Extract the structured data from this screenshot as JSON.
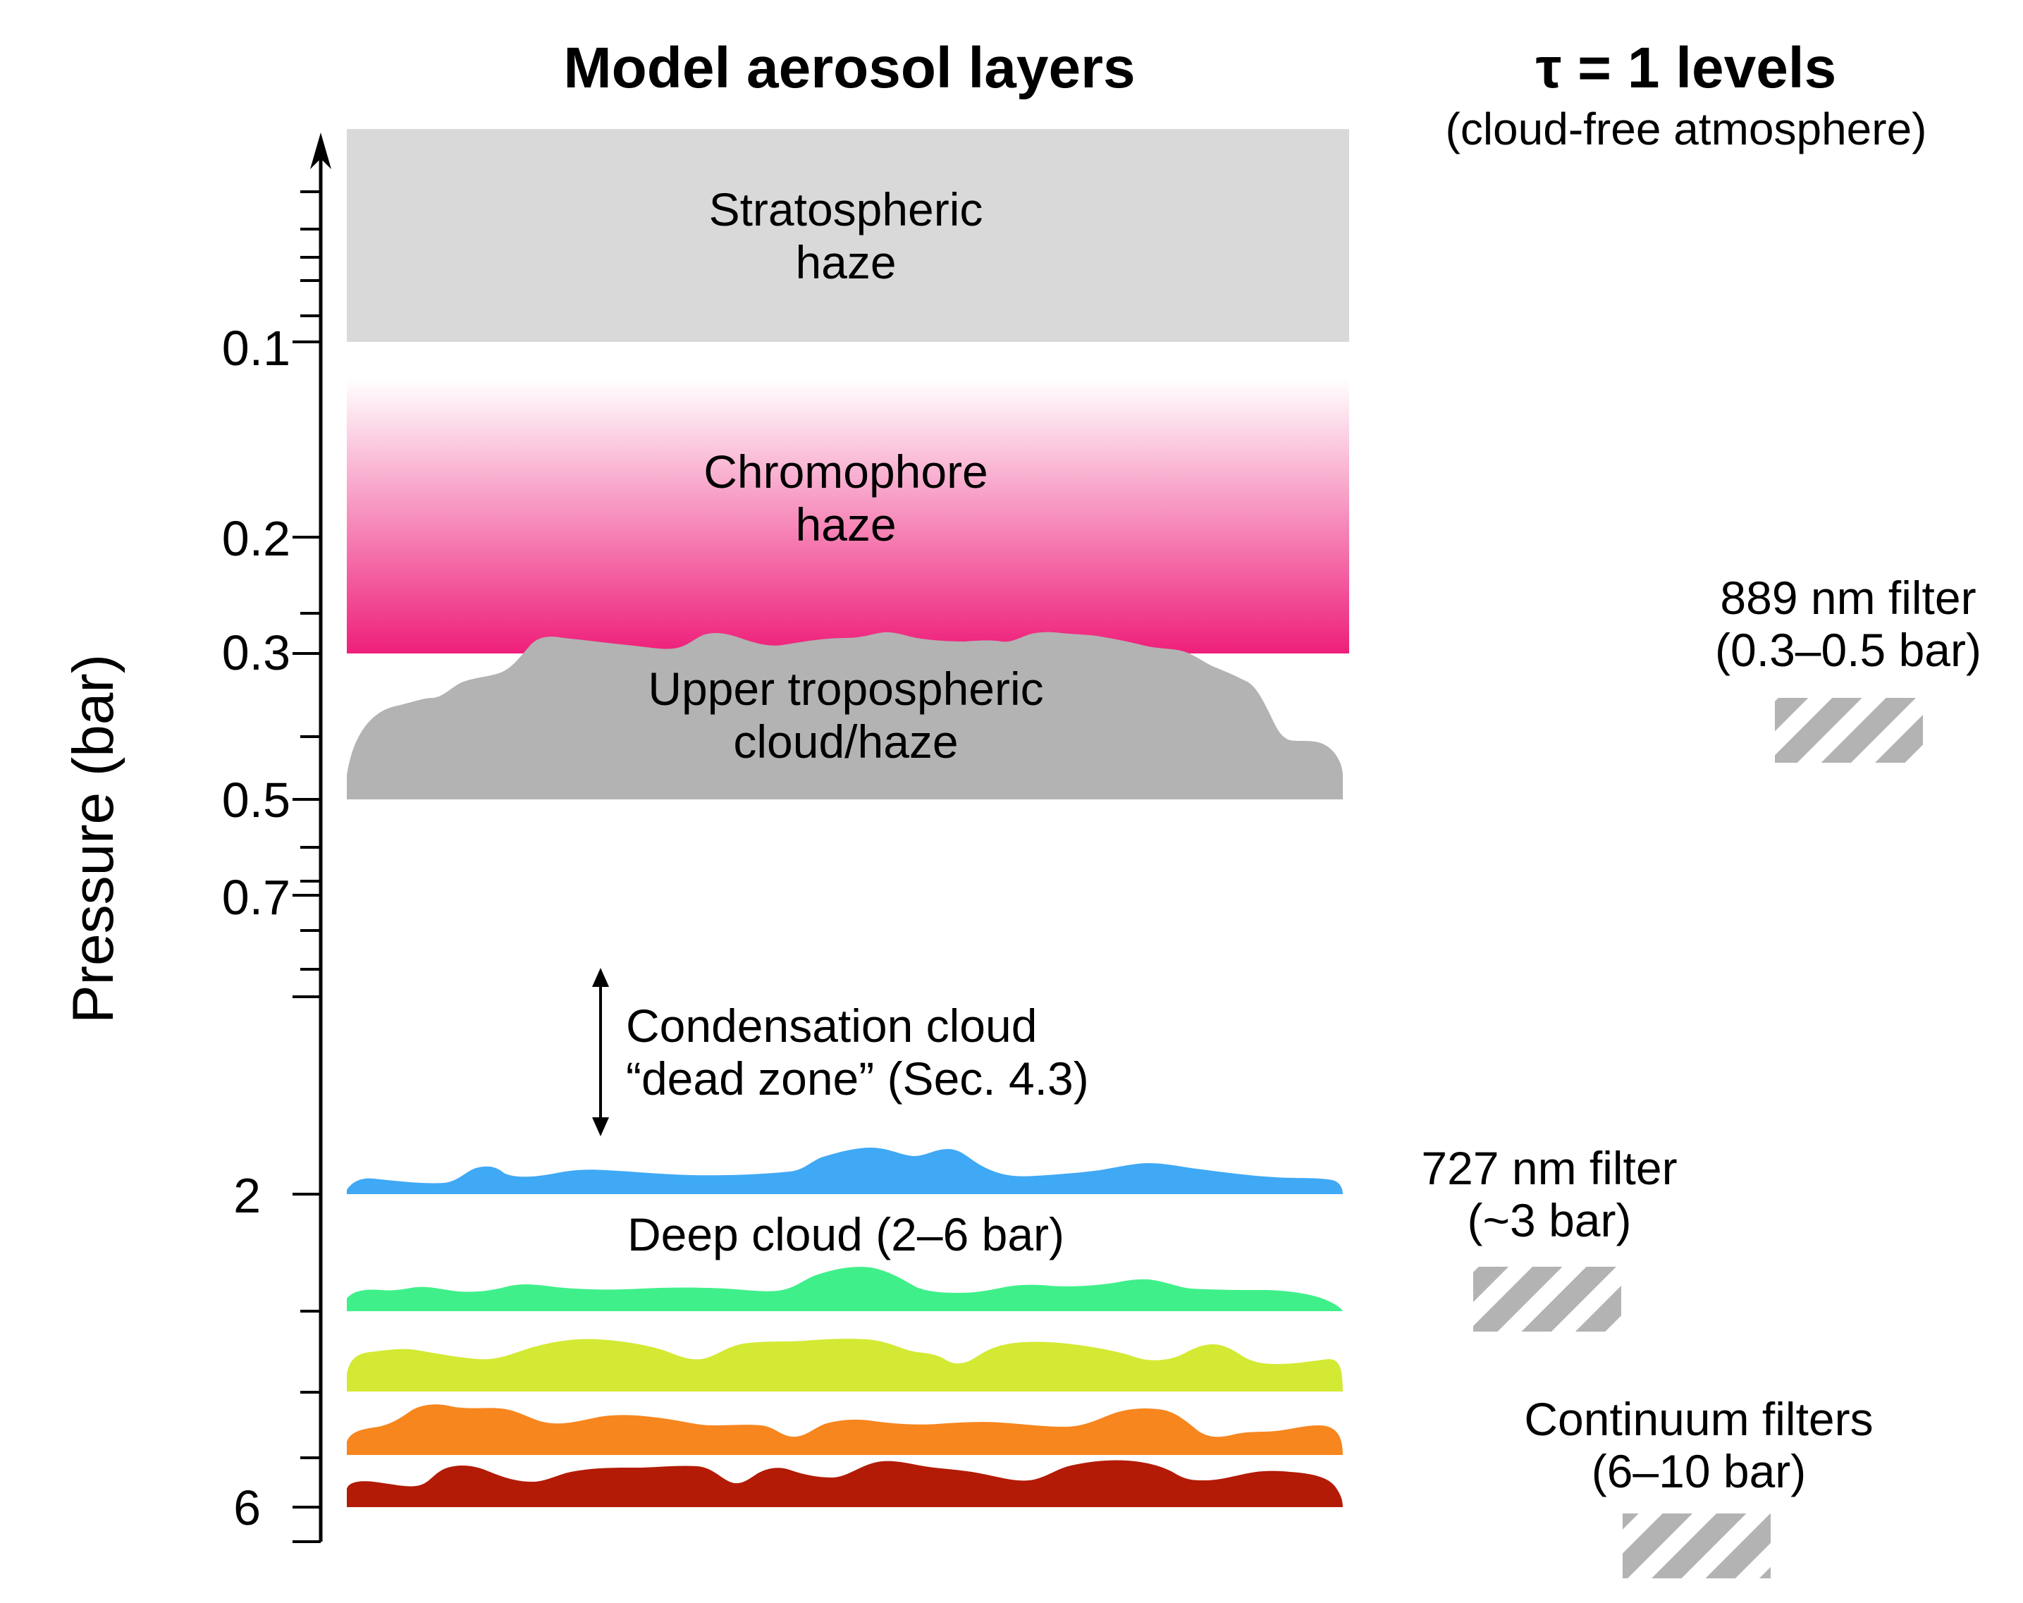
{
  "titles": {
    "left": "Model aerosol layers",
    "right_main": "τ = 1 levels",
    "right_sub": "(cloud-free atmosphere)"
  },
  "axis": {
    "label": "Pressure (bar)",
    "scale": "log",
    "tick_labels": [
      "0.1",
      "0.2",
      "0.3",
      "0.5",
      "0.7",
      "2",
      "6"
    ]
  },
  "layers": {
    "stratospheric": {
      "line1": "Stratospheric",
      "line2": "haze",
      "color": "#d9d9d9"
    },
    "chromophore": {
      "line1": "Chromophore",
      "line2": "haze",
      "color_top": "#ffffff",
      "color_bottom": "#ee1f7a"
    },
    "upper_trop": {
      "line1": "Upper tropospheric",
      "line2": "cloud/haze",
      "color": "#b3b3b3"
    },
    "dead_zone": {
      "line1": "Condensation cloud",
      "line2": "“dead zone” (Sec. 4.3)"
    },
    "deep_cloud": {
      "label": "Deep cloud (2–6 bar)"
    }
  },
  "deep_cloud_colors": [
    "#3fa9f5",
    "#3ff08a",
    "#d4e933",
    "#f7861f",
    "#b31b06"
  ],
  "filters": {
    "f889": {
      "line1": "889 nm filter",
      "line2": "(0.3–0.5 bar)"
    },
    "f727": {
      "line1": "727 nm filter",
      "line2": "(~3 bar)"
    },
    "continuum": {
      "line1": "Continuum filters",
      "line2": "(6–10 bar)"
    }
  },
  "filter_box_color": "#b3b3b3"
}
